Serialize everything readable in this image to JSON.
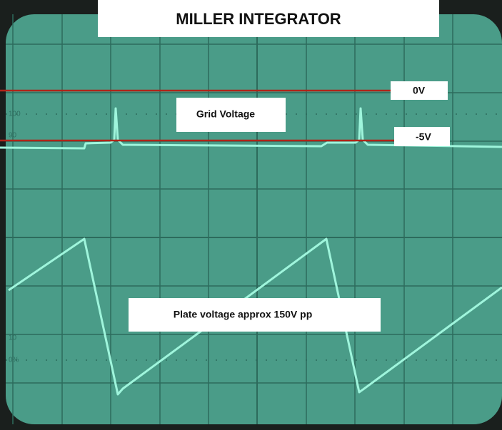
{
  "title": "MILLER INTEGRATOR",
  "labels": {
    "zero": "0V",
    "grid": "Grid Voltage",
    "minus": "-5V",
    "plate": "Plate voltage approx 150V pp"
  },
  "graticule": {
    "top": "100",
    "top2": "90",
    "bottom2": "10",
    "bottom": "0%"
  }
}
